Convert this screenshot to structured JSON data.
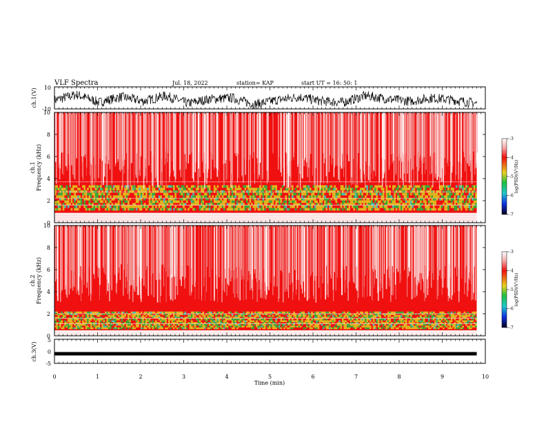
{
  "header": {
    "title": "VLF Spectra",
    "date": "Jul. 18, 2022",
    "station": "station= KAP",
    "start": "start UT = 16: 50: 1"
  },
  "chart_data": [
    {
      "type": "line",
      "id": "ch1-waveform",
      "ylabel": "ch.1(V)",
      "ylim": [
        -10,
        10
      ],
      "yticks": [
        "10",
        "-10"
      ],
      "x_range_min": [
        0,
        9.8
      ],
      "series": [
        {
          "values_description_free": true,
          "values": [
            -2,
            3,
            -4,
            1,
            -3,
            2,
            -5,
            -1,
            0,
            -6,
            -2,
            1,
            -3,
            -4,
            2,
            -1,
            -3,
            0,
            -2,
            -5
          ]
        }
      ]
    },
    {
      "type": "heatmap",
      "id": "ch1-spectrogram",
      "ylabel": "ch.1 Frequency (kHz)",
      "ylim": [
        0,
        10
      ],
      "yticks": [
        "0",
        "2",
        "4",
        "6",
        "8",
        "10"
      ],
      "x_range_min": [
        0,
        9.8
      ],
      "colorbar": {
        "label": "log(PSD)(V²/Hz)",
        "range": [
          -7,
          -3
        ],
        "ticks": [
          "-3",
          "-4",
          "-5",
          "-6",
          "-7"
        ]
      }
    },
    {
      "type": "heatmap",
      "id": "ch2-spectrogram",
      "ylabel": "ch.2 Frequency (kHz)",
      "ylim": [
        0,
        10
      ],
      "yticks": [
        "0",
        "2",
        "4",
        "6",
        "8",
        "10"
      ],
      "x_range_min": [
        0,
        9.8
      ],
      "colorbar": {
        "label": "log(PSD)(V²/Hz)",
        "range": [
          -7,
          -3
        ],
        "ticks": [
          "-3",
          "-4",
          "-5",
          "-6",
          "-7"
        ]
      }
    },
    {
      "type": "line",
      "id": "ch3-waveform",
      "ylabel": "ch.3(V)",
      "ylim": [
        -5,
        5
      ],
      "yticks": [
        "5",
        "0",
        "-5"
      ],
      "x_range_min": [
        0,
        9.8
      ],
      "series": [
        {
          "values": [
            -1,
            -1,
            -1,
            -1
          ]
        }
      ]
    }
  ],
  "xaxis": {
    "label": "Time (min)",
    "range": [
      0,
      10
    ],
    "ticks": [
      "0",
      "1",
      "2",
      "3",
      "4",
      "5",
      "6",
      "7",
      "8",
      "9",
      "10"
    ]
  },
  "colors": {
    "spec_red": "#f01010",
    "spec_pink": "#f2a0a0",
    "spec_yellow": "#e0d020",
    "spec_green": "#20c040",
    "spec_cyan": "#30d8d0"
  }
}
